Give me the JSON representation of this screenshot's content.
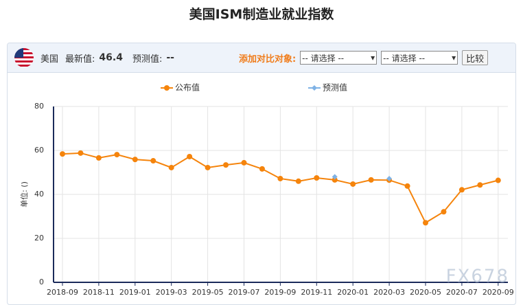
{
  "page_title": "美国ISM制造业就业指数",
  "toolbar": {
    "country": "美国",
    "latest_label": "最新值:",
    "latest_value": "46.4",
    "forecast_label": "预测值:",
    "forecast_value": "--",
    "compare_label": "添加对比对象:",
    "select_1": "-- 请选择 --",
    "select_2": "-- 请选择 --",
    "button": "比较"
  },
  "watermark": "FX678",
  "chart_data": {
    "type": "line",
    "y_label": "单位: ()",
    "categories": [
      "2018-09",
      null,
      "2018-11",
      null,
      "2019-01",
      null,
      "2019-03",
      null,
      "2019-05",
      null,
      "2019-07",
      null,
      "2019-09",
      null,
      "2019-11",
      null,
      "2020-01",
      null,
      "2020-03",
      null,
      "2020-05",
      null,
      "2020-07",
      null,
      "2020-09"
    ],
    "series": [
      {
        "name": "公布值",
        "color": "#f5840c",
        "marker": "circle",
        "values": [
          58.4,
          58.8,
          56.6,
          58.1,
          55.9,
          55.3,
          52.2,
          57.2,
          52.2,
          53.4,
          54.4,
          51.6,
          47.2,
          46.0,
          47.5,
          46.6,
          44.7,
          46.6,
          46.5,
          43.8,
          27.1,
          32.1,
          42.1,
          44.3,
          46.4
        ]
      },
      {
        "name": "预测值",
        "color": "#7fb2e5",
        "marker": "diamond",
        "values": [
          null,
          null,
          null,
          null,
          null,
          null,
          null,
          null,
          null,
          null,
          null,
          null,
          null,
          null,
          null,
          48.0,
          null,
          null,
          47.2,
          null,
          null,
          null,
          null,
          null,
          null
        ]
      }
    ],
    "ylim": [
      0,
      80
    ],
    "yticks": [
      0,
      20,
      40,
      60,
      80
    ],
    "grid": true
  }
}
